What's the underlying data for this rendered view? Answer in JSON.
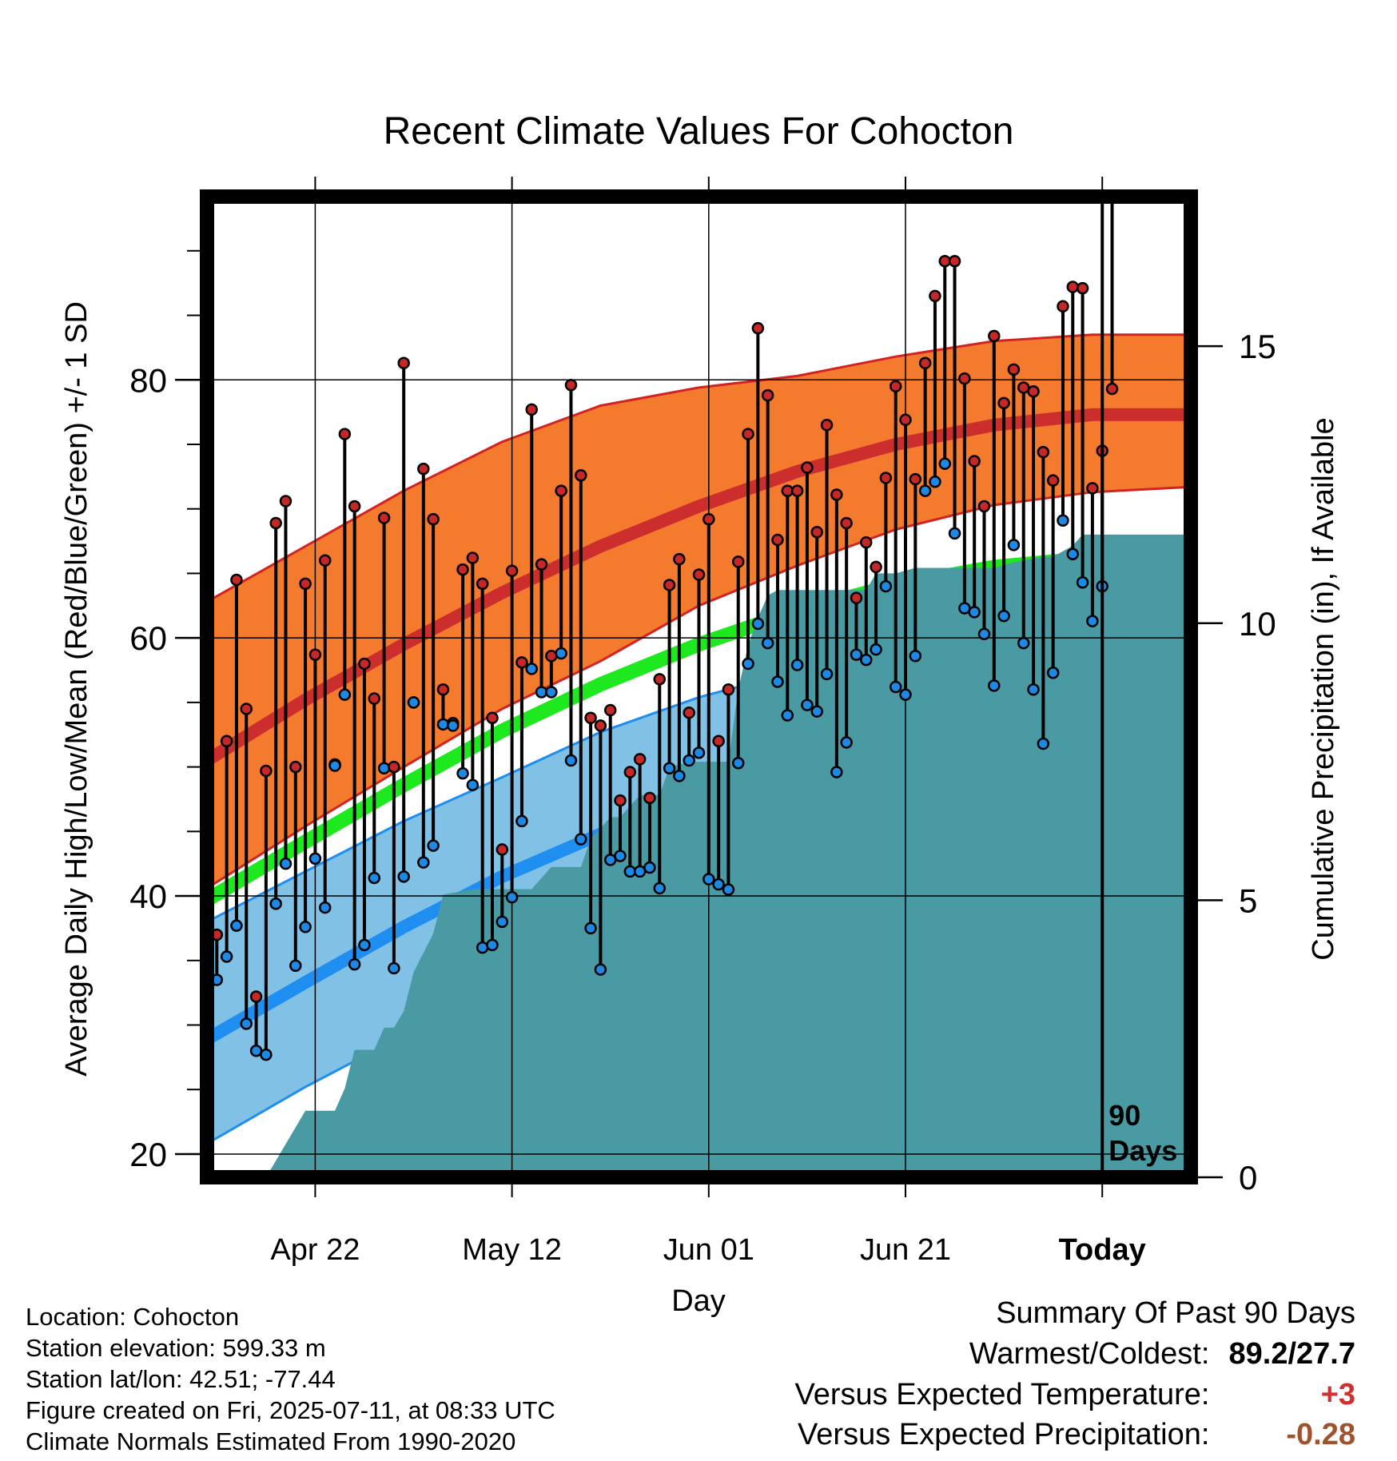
{
  "chart_data": {
    "type": "line",
    "title": "Recent Climate Values For Cohocton",
    "xlabel": "Day",
    "ylabel": "Average Daily High/Low/Mean (Red/Blue/Green) +/- 1 SD",
    "y2label": "Cumulative Precipitation (in), If Available",
    "ylim": [
      18.2,
      94.2
    ],
    "y2lim": [
      0,
      17.7
    ],
    "yticks": [
      "20",
      "40",
      "60",
      "80"
    ],
    "y2ticks": [
      "0",
      "5",
      "10",
      "15"
    ],
    "x_tick_labels": [
      {
        "day": 11,
        "label": "Apr 22"
      },
      {
        "day": 31,
        "label": "May 12"
      },
      {
        "day": 51,
        "label": "Jun 01"
      },
      {
        "day": 71,
        "label": "Jun 21"
      },
      {
        "day": 91,
        "label": "Today"
      }
    ],
    "xlim": [
      0,
      100
    ],
    "today_marker": {
      "day": 91,
      "label_line1": "90",
      "label_line2": "Days"
    },
    "grid": true,
    "normals": {
      "days": [
        0,
        10,
        20,
        30,
        40,
        50,
        60,
        70,
        80,
        90,
        100
      ],
      "high_mean": [
        50.5,
        55.2,
        59.5,
        63.5,
        67.1,
        70.2,
        72.9,
        75.0,
        76.5,
        77.3,
        77.3
      ],
      "high_plus_sd": [
        62.8,
        67.1,
        71.4,
        75.2,
        78.0,
        79.4,
        80.3,
        81.8,
        83.0,
        83.5,
        83.5
      ],
      "high_minus_sd": [
        40.6,
        45.4,
        50.0,
        54.5,
        58.2,
        62.5,
        65.6,
        68.4,
        70.3,
        71.3,
        71.7
      ],
      "mean": [
        39.7,
        44.2,
        48.6,
        52.8,
        56.4,
        59.5,
        62.1,
        64.1,
        65.5,
        66.2,
        66.2
      ],
      "low_mean": [
        28.9,
        33.3,
        37.6,
        41.5,
        44.8,
        47.8,
        50.8,
        52.8,
        54.2,
        54.8,
        54.8
      ],
      "low_plus_sd": [
        38.0,
        41.9,
        45.8,
        49.2,
        52.7,
        55.4,
        57.4,
        59.0,
        60.3,
        61.1,
        61.1
      ],
      "low_minus_sd": [
        20.8,
        25.2,
        29.2,
        33.2,
        36.7,
        40.0,
        43.6,
        46.3,
        48.2,
        48.9,
        49.1
      ]
    },
    "series": [
      {
        "name": "High",
        "color": "#c62828",
        "values": [
          37.0,
          52.0,
          64.5,
          54.5,
          32.2,
          49.7,
          68.9,
          70.6,
          50.0,
          64.2,
          58.7,
          66.0,
          50.2,
          75.8,
          70.2,
          58.0,
          55.3,
          69.3,
          50.0,
          81.3,
          55.0,
          73.1,
          69.2,
          56.0,
          53.4,
          65.3,
          66.2,
          64.2,
          53.8,
          43.6,
          65.2,
          58.1,
          77.7,
          65.7,
          58.6,
          71.4,
          79.6,
          72.6,
          53.8,
          53.2,
          54.4,
          47.4,
          49.6,
          50.6,
          47.6,
          56.8,
          64.1,
          66.1,
          54.2,
          64.9,
          69.2,
          52.0,
          56.0,
          65.9,
          75.8,
          84.0,
          78.8,
          67.6,
          71.4,
          71.4,
          73.2,
          68.2,
          76.5,
          71.1,
          68.9,
          63.1,
          67.4,
          65.5,
          72.4,
          79.5,
          76.9,
          72.3,
          81.3,
          86.5,
          89.2,
          89.2,
          80.1,
          73.7,
          70.2,
          83.4,
          78.2,
          80.8,
          79.4,
          79.1,
          74.4,
          72.2,
          85.7,
          87.2,
          87.1,
          71.6,
          74.5,
          79.3
        ]
      },
      {
        "name": "Low",
        "color": "#1e88e5",
        "values": [
          33.5,
          35.3,
          37.7,
          30.1,
          28.0,
          27.7,
          39.4,
          42.5,
          34.6,
          37.6,
          42.9,
          39.1,
          50.1,
          55.6,
          34.7,
          36.2,
          41.4,
          49.9,
          34.4,
          41.5,
          55.0,
          42.6,
          43.9,
          53.3,
          53.2,
          49.5,
          48.6,
          36.0,
          36.2,
          38.0,
          39.9,
          45.8,
          57.6,
          55.8,
          55.8,
          58.8,
          50.5,
          44.4,
          37.5,
          34.3,
          42.8,
          43.1,
          41.9,
          41.9,
          42.2,
          40.6,
          49.9,
          49.3,
          50.5,
          51.1,
          41.3,
          40.9,
          40.5,
          50.3,
          58.0,
          61.1,
          59.6,
          56.6,
          54.0,
          57.9,
          54.8,
          54.3,
          57.2,
          49.6,
          51.9,
          58.7,
          58.3,
          59.1,
          64.0,
          56.2,
          55.6,
          58.6,
          71.4,
          72.1,
          73.5,
          68.1,
          62.3,
          62.0,
          60.3,
          56.3,
          61.7,
          67.2,
          59.6,
          56.0,
          51.8,
          57.3,
          69.1,
          66.5,
          64.3,
          61.3,
          64.0
        ]
      }
    ],
    "precipitation": {
      "name": "Cumulative Precipitation",
      "color": "#4a9aa4",
      "days": [
        0,
        6,
        7,
        9,
        10,
        13,
        14,
        15,
        17,
        18,
        19,
        20,
        21,
        23,
        24,
        27,
        28,
        33,
        35,
        36,
        38,
        39,
        41,
        42,
        44,
        46,
        47,
        49,
        50,
        53,
        54,
        55,
        56,
        57,
        58,
        60,
        62,
        67,
        68,
        70,
        72,
        75,
        80,
        82,
        85,
        86,
        88,
        89,
        90,
        100
      ],
      "values": [
        0,
        0,
        0.3,
        0.9,
        1.2,
        1.2,
        1.6,
        2.3,
        2.3,
        2.7,
        2.7,
        3.0,
        3.7,
        4.4,
        5.1,
        5.2,
        5.2,
        5.2,
        5.6,
        5.6,
        5.6,
        6.1,
        6.5,
        6.5,
        6.9,
        6.9,
        7.4,
        7.5,
        7.5,
        7.5,
        8.8,
        9.6,
        10.1,
        10.5,
        10.6,
        10.6,
        10.6,
        10.6,
        10.9,
        10.9,
        11.0,
        11.0,
        11.0,
        11.1,
        11.2,
        11.2,
        11.4,
        11.6,
        11.6,
        11.6
      ]
    }
  },
  "info": {
    "location": "Location: Cohocton",
    "elevation": "Station elevation: 599.33 m",
    "latlon": "Station lat/lon: 42.51; -77.44",
    "created": "Figure created on Fri, 2025-07-11, at 08:33 UTC",
    "normals": "Climate Normals Estimated From 1990-2020"
  },
  "summary": {
    "title": "Summary Of Past 90 Days",
    "warm_cold_label": "Warmest/Coldest:",
    "warm_cold_value": "89.2/27.7",
    "temp_label": "Versus Expected Temperature:",
    "temp_value": "+3",
    "temp_color": "#d32f2f",
    "precip_label": "Versus Expected Precipitation:",
    "precip_value": "-0.28",
    "precip_color": "#a0522d"
  },
  "colors": {
    "high_band": "#f47a2e",
    "high_line": "#cc2e2e",
    "mean_line": "#1ee81e",
    "low_band": "#82c1e6",
    "low_line": "#1e8ef0",
    "band_edge_high": "#d32222",
    "band_edge_low": "#1e8ef0"
  }
}
